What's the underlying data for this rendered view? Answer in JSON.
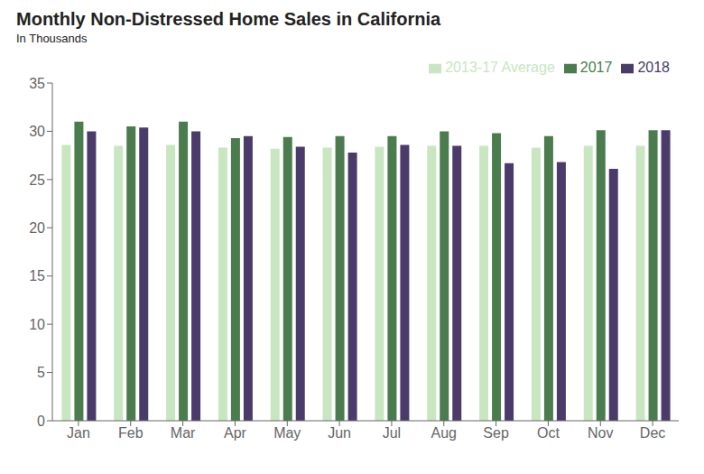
{
  "chart_data": {
    "type": "bar",
    "title": "Monthly Non-Distressed Home Sales in California",
    "subtitle": "In Thousands",
    "categories": [
      "Jan",
      "Feb",
      "Mar",
      "Apr",
      "May",
      "Jun",
      "Jul",
      "Aug",
      "Sep",
      "Oct",
      "Nov",
      "Dec"
    ],
    "series": [
      {
        "name": "2013-17 Average",
        "color": "#c8e6c0",
        "values": [
          28.6,
          28.5,
          28.6,
          28.3,
          28.2,
          28.3,
          28.4,
          28.5,
          28.5,
          28.3,
          28.5,
          28.5
        ]
      },
      {
        "name": "2017",
        "color": "#4a7c4e",
        "values": [
          31.0,
          30.5,
          31.0,
          29.3,
          29.4,
          29.5,
          29.5,
          30.0,
          29.8,
          29.5,
          30.1,
          30.1
        ]
      },
      {
        "name": "2018",
        "color": "#4b3b6b",
        "values": [
          30.0,
          30.4,
          30.0,
          29.5,
          28.4,
          27.8,
          28.6,
          28.5,
          26.7,
          26.8,
          26.1,
          30.1
        ]
      }
    ],
    "ylim": [
      0,
      35
    ],
    "yticks": [
      0,
      5,
      10,
      15,
      20,
      25,
      30,
      35
    ],
    "grid": false,
    "legend": "upper right"
  }
}
